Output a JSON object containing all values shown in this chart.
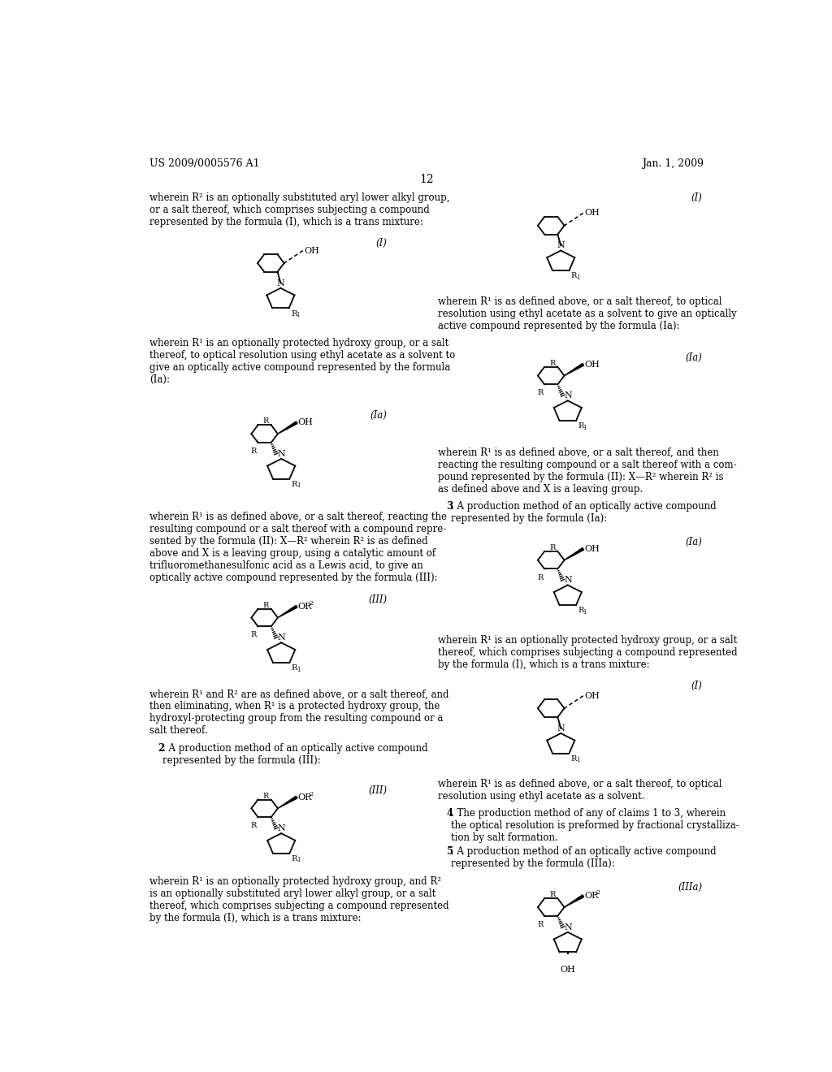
{
  "background_color": "#ffffff",
  "header_left": "US 2009/0005576 A1",
  "header_right": "Jan. 1, 2009",
  "page_number": "12"
}
